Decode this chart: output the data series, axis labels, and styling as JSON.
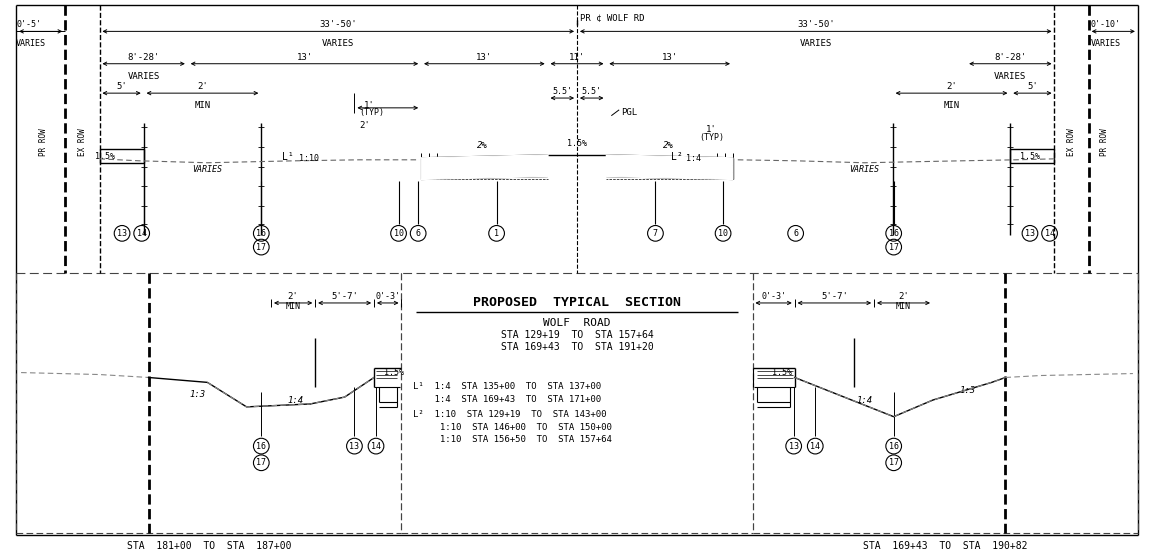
{
  "title": "PROPOSED  TYPICAL  SECTION",
  "subtitle": "WOLF  ROAD",
  "sta_line1": "STA 129+19  TO  STA 157+64",
  "sta_line2": "STA 169+43  TO  STA 191+20",
  "L1_line1": "L¹  1:4  STA 135+00  TO  STA 137+00",
  "L1_line2": "    1:4  STA 169+43  TO  STA 171+00",
  "L2_line1": "L²  1:10  STA 129+19  TO  STA 143+00",
  "L2_line2": "     1:10  STA 146+00  TO  STA 150+00",
  "L2_line3": "     1:10  STA 156+50  TO  STA 157+64",
  "sta_bottom_left": "STA  181+00  TO  STA  187+00",
  "sta_bottom_right": "STA  169+43  TO  STA  190+82",
  "bg_color": "#ffffff",
  "line_color": "#000000",
  "dashed_color": "#888888"
}
